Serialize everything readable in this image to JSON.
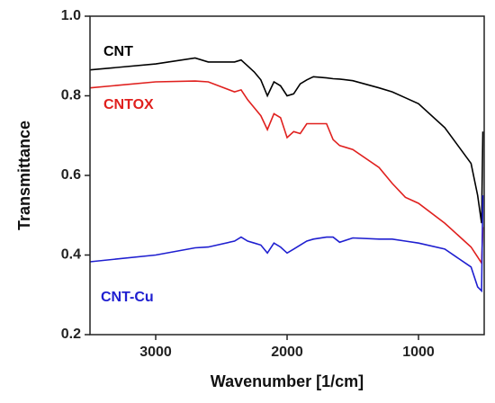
{
  "chart_data": {
    "type": "line",
    "xlabel": "Wavenumber [1/cm]",
    "ylabel": "Transmittance",
    "x": [
      3500,
      3000,
      2700,
      2600,
      2400,
      2350,
      2300,
      2250,
      2200,
      2150,
      2100,
      2050,
      2000,
      1950,
      1900,
      1850,
      1800,
      1700,
      1650,
      1600,
      1500,
      1300,
      1200,
      1100,
      1000,
      800,
      600,
      550,
      520,
      510
    ],
    "series": [
      {
        "name": "CNT",
        "color": "#000000",
        "values": [
          0.865,
          0.88,
          0.895,
          0.885,
          0.885,
          0.89,
          0.875,
          0.86,
          0.84,
          0.8,
          0.835,
          0.825,
          0.8,
          0.805,
          0.83,
          0.84,
          0.848,
          0.845,
          0.843,
          0.842,
          0.838,
          0.82,
          0.81,
          0.795,
          0.78,
          0.72,
          0.63,
          0.55,
          0.48,
          0.71
        ]
      },
      {
        "name": "CNTOX",
        "color": "#e0201e",
        "values": [
          0.82,
          0.835,
          0.837,
          0.835,
          0.81,
          0.815,
          0.79,
          0.77,
          0.75,
          0.715,
          0.755,
          0.745,
          0.695,
          0.71,
          0.705,
          0.73,
          0.73,
          0.73,
          0.69,
          0.675,
          0.665,
          0.62,
          0.58,
          0.545,
          0.53,
          0.48,
          0.42,
          0.395,
          0.38,
          0.47
        ]
      },
      {
        "name": "CNT-Cu",
        "color": "#1f1fd0",
        "values": [
          0.383,
          0.4,
          0.418,
          0.42,
          0.435,
          0.445,
          0.435,
          0.43,
          0.425,
          0.405,
          0.43,
          0.42,
          0.405,
          0.415,
          0.425,
          0.435,
          0.44,
          0.445,
          0.445,
          0.432,
          0.443,
          0.44,
          0.44,
          0.435,
          0.43,
          0.415,
          0.37,
          0.32,
          0.31,
          0.55
        ]
      }
    ],
    "xlim": [
      3500,
      500
    ],
    "xticks": [
      3000,
      2000,
      1000
    ],
    "ylim": [
      0.2,
      1.0
    ],
    "yticks": [
      0.2,
      0.4,
      0.6,
      0.8,
      {
        "value": 1.0,
        "label": "1.0"
      }
    ]
  }
}
